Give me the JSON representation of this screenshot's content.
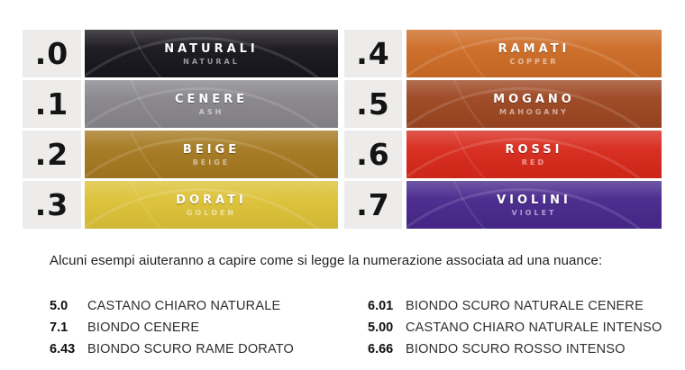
{
  "palette_table": {
    "number_cell_bg": "#edecea",
    "rows": [
      {
        "code": ".0",
        "name": "NATURALI",
        "name_en": "NATURAL",
        "color": "#17151c"
      },
      {
        "code": ".1",
        "name": "CENERE",
        "name_en": "ASH",
        "color": "#87858a"
      },
      {
        "code": ".2",
        "name": "BEIGE",
        "name_en": "BEIGE",
        "color": "#a5781f"
      },
      {
        "code": ".3",
        "name": "DORATI",
        "name_en": "GOLDEN",
        "color": "#dcc136"
      },
      {
        "code": ".4",
        "name": "RAMATI",
        "name_en": "COPPER",
        "color": "#cd6b25"
      },
      {
        "code": ".5",
        "name": "MOGANO",
        "name_en": "MAHOGANY",
        "color": "#9c4520"
      },
      {
        "code": ".6",
        "name": "ROSSI",
        "name_en": "RED",
        "color": "#d7281a"
      },
      {
        "code": ".7",
        "name": "VIOLINI",
        "name_en": "VIOLET",
        "color": "#46278c"
      }
    ]
  },
  "intro_text": "Alcuni esempi aiuteranno a capire come si legge la numerazione associata ad una nuance:",
  "examples": {
    "left": [
      {
        "code": "5.0",
        "label": "CASTANO CHIARO NATURALE"
      },
      {
        "code": "7.1",
        "label": "BIONDO CENERE"
      },
      {
        "code": "6.43",
        "label": "BIONDO SCURO RAME DORATO"
      }
    ],
    "right": [
      {
        "code": "6.01",
        "label": "BIONDO SCURO NATURALE CENERE"
      },
      {
        "code": "5.00",
        "label": "CASTANO CHIARO NATURALE INTENSO"
      },
      {
        "code": "6.66",
        "label": "BIONDO SCURO ROSSO INTENSO"
      }
    ]
  }
}
